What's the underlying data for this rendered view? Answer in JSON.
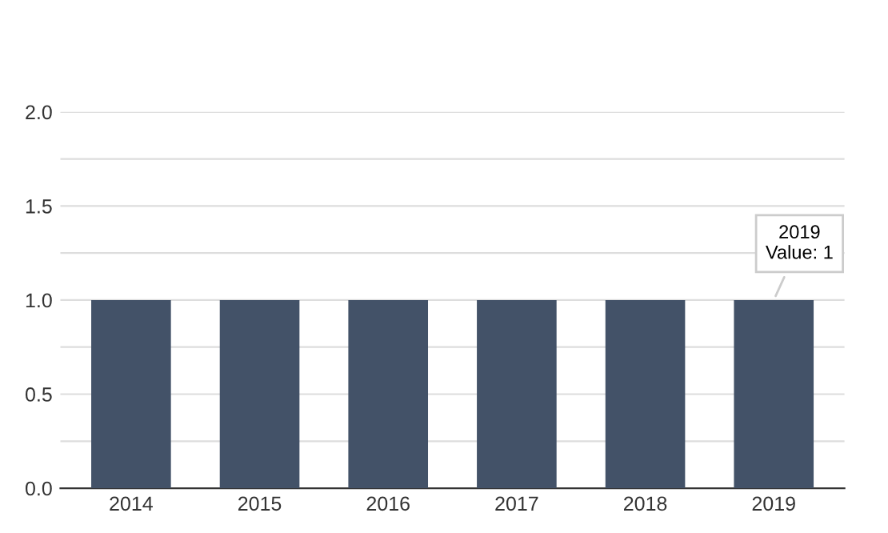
{
  "chart_data": {
    "type": "bar",
    "categories": [
      "2014",
      "2015",
      "2016",
      "2017",
      "2018",
      "2019"
    ],
    "values": [
      1,
      1,
      1,
      1,
      1,
      1
    ],
    "color": "#435268",
    "ylim": [
      0,
      2
    ],
    "yticks": [
      {
        "value": 0,
        "label": "0.0"
      },
      {
        "value": 0.25,
        "label": null
      },
      0.5,
      {
        "value": 0.75,
        "label": null
      },
      {
        "value": 1,
        "label": "1.0"
      },
      {
        "value": 1.25,
        "label": null
      },
      1.5,
      {
        "value": 1.75,
        "label": null
      },
      {
        "value": 2,
        "label": "2.0"
      }
    ],
    "grid": "y",
    "annotations": [
      {
        "text": "2019\nValue: 1",
        "x": "2019",
        "y": 1
      }
    ]
  }
}
